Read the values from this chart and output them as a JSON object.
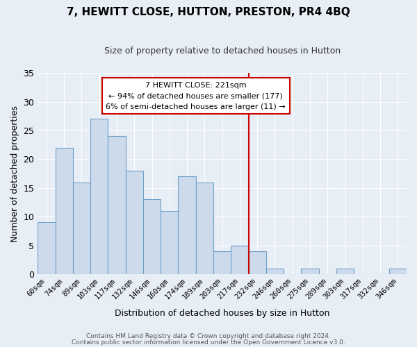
{
  "title": "7, HEWITT CLOSE, HUTTON, PRESTON, PR4 4BQ",
  "subtitle": "Size of property relative to detached houses in Hutton",
  "xlabel": "Distribution of detached houses by size in Hutton",
  "ylabel": "Number of detached properties",
  "footer_lines": [
    "Contains HM Land Registry data © Crown copyright and database right 2024.",
    "Contains public sector information licensed under the Open Government Licence v3.0."
  ],
  "bin_labels": [
    "60sqm",
    "74sqm",
    "89sqm",
    "103sqm",
    "117sqm",
    "132sqm",
    "146sqm",
    "160sqm",
    "174sqm",
    "189sqm",
    "203sqm",
    "217sqm",
    "232sqm",
    "246sqm",
    "260sqm",
    "275sqm",
    "289sqm",
    "303sqm",
    "317sqm",
    "332sqm",
    "346sqm"
  ],
  "bar_values": [
    9,
    22,
    16,
    27,
    24,
    18,
    13,
    11,
    17,
    16,
    4,
    5,
    4,
    1,
    0,
    1,
    0,
    1,
    0,
    0,
    1
  ],
  "bar_color": "#ccdaeb",
  "bar_edge_color": "#6fa0c8",
  "highlight_line_x_label": "217sqm",
  "highlight_line_color": "#cc0000",
  "annotation_title": "7 HEWITT CLOSE: 221sqm",
  "annotation_line1": "← 94% of detached houses are smaller (177)",
  "annotation_line2": "6% of semi-detached houses are larger (11) →",
  "annotation_box_facecolor": "#ffffff",
  "annotation_box_edgecolor": "#cc0000",
  "ylim": [
    0,
    35
  ],
  "yticks": [
    0,
    5,
    10,
    15,
    20,
    25,
    30,
    35
  ],
  "plot_bg_color": "#e8eef5",
  "fig_bg_color": "#e8eef5",
  "grid_color": "#ffffff",
  "title_fontsize": 11,
  "subtitle_fontsize": 9
}
